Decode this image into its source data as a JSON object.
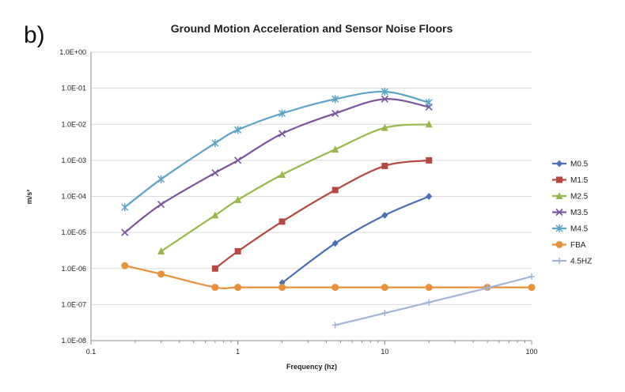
{
  "panel_label": "b)",
  "chart_data": {
    "type": "line",
    "title": "Ground Motion Acceleration and Sensor Noise Floors",
    "xlabel": "Frequency (hz)",
    "ylabel": "m/s²",
    "x_scale": "log",
    "y_scale": "log",
    "xlim": [
      0.1,
      100
    ],
    "ylim": [
      1e-08,
      1
    ],
    "x_tick_labels": [
      "0.1",
      "1",
      "10",
      "100"
    ],
    "y_tick_labels": [
      "1.0E-08",
      "1.0E-07",
      "1.0E-06",
      "1.0E-05",
      "1.0E-04",
      "1.0E-03",
      "1.0E-02",
      "1.0E-01",
      "1.0E+00"
    ],
    "grid": "horizontal",
    "legend": "right",
    "series": [
      {
        "name": "M0.5",
        "color": "#4a6fb5",
        "marker": "diamond",
        "points": [
          [
            2,
            4e-07
          ],
          [
            4.6,
            5e-06
          ],
          [
            10,
            3e-05
          ],
          [
            20,
            0.0001
          ]
        ]
      },
      {
        "name": "M1.5",
        "color": "#b5483f",
        "marker": "square",
        "points": [
          [
            0.7,
            1e-06
          ],
          [
            1,
            3e-06
          ],
          [
            2,
            2e-05
          ],
          [
            4.6,
            0.00015
          ],
          [
            10,
            0.0007
          ],
          [
            20,
            0.001
          ]
        ]
      },
      {
        "name": "M2.5",
        "color": "#98b84a",
        "marker": "triangle",
        "points": [
          [
            0.3,
            3e-06
          ],
          [
            0.7,
            3e-05
          ],
          [
            1,
            8e-05
          ],
          [
            2,
            0.0004
          ],
          [
            4.6,
            0.002
          ],
          [
            10,
            0.008
          ],
          [
            20,
            0.01
          ]
        ]
      },
      {
        "name": "M3.5",
        "color": "#7b559d",
        "marker": "x",
        "points": [
          [
            0.17,
            1e-05
          ],
          [
            0.3,
            6e-05
          ],
          [
            0.7,
            0.00045
          ],
          [
            1,
            0.001
          ],
          [
            2,
            0.0055
          ],
          [
            4.6,
            0.02
          ],
          [
            10,
            0.05
          ],
          [
            20,
            0.03
          ]
        ]
      },
      {
        "name": "M4.5",
        "color": "#5ba4c8",
        "marker": "star",
        "points": [
          [
            0.17,
            5e-05
          ],
          [
            0.3,
            0.0003
          ],
          [
            0.7,
            0.003
          ],
          [
            1,
            0.007
          ],
          [
            2,
            0.02
          ],
          [
            4.6,
            0.05
          ],
          [
            10,
            0.08
          ],
          [
            20,
            0.04
          ]
        ]
      },
      {
        "name": "FBA",
        "color": "#e8913a",
        "marker": "circle",
        "points": [
          [
            0.17,
            1.2e-06
          ],
          [
            0.3,
            7e-07
          ],
          [
            0.7,
            3e-07
          ],
          [
            1,
            3e-07
          ],
          [
            2,
            3e-07
          ],
          [
            4.6,
            3e-07
          ],
          [
            10,
            3e-07
          ],
          [
            20,
            3e-07
          ],
          [
            50,
            3e-07
          ],
          [
            100,
            3e-07
          ]
        ]
      },
      {
        "name": "4.5HZ",
        "color": "#a4b4d8",
        "marker": "plus",
        "points": [
          [
            4.6,
            2.7e-08
          ],
          [
            10,
            5.8e-08
          ],
          [
            20,
            1.15e-07
          ],
          [
            50,
            2.9e-07
          ],
          [
            100,
            6e-07
          ]
        ]
      }
    ]
  }
}
